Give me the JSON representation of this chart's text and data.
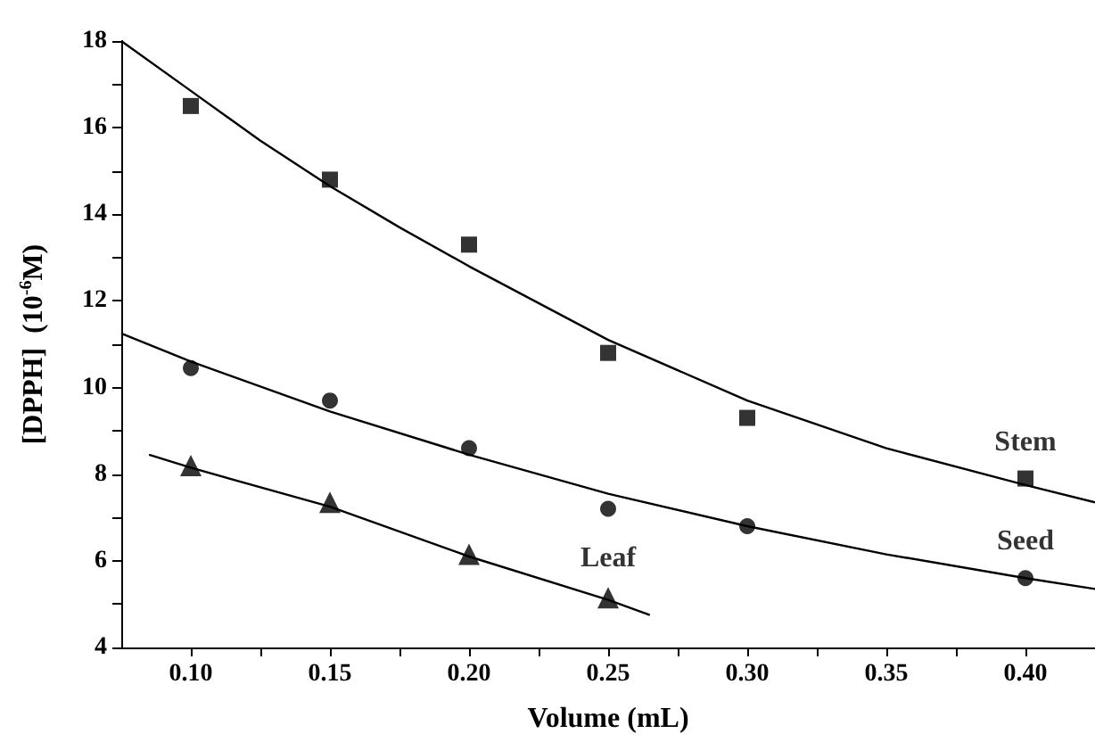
{
  "chart_data": {
    "type": "scatter",
    "xlabel": "Volume (mL)",
    "ylabel": "[DPPH]  (10$^{-6}$M)",
    "xlim": [
      0.075,
      0.425
    ],
    "ylim": [
      4,
      18
    ],
    "xticks": [
      {
        "value": 0.1,
        "label": "0.10"
      },
      {
        "value": 0.125,
        "label": null
      },
      {
        "value": 0.15,
        "label": "0.15"
      },
      {
        "value": 0.175,
        "label": null
      },
      {
        "value": 0.2,
        "label": "0.20"
      },
      {
        "value": 0.225,
        "label": null
      },
      {
        "value": 0.25,
        "label": "0.25"
      },
      {
        "value": 0.275,
        "label": null
      },
      {
        "value": 0.3,
        "label": "0.30"
      },
      {
        "value": 0.325,
        "label": null
      },
      {
        "value": 0.35,
        "label": "0.35"
      },
      {
        "value": 0.375,
        "label": null
      },
      {
        "value": 0.4,
        "label": "0.40"
      }
    ],
    "yticks": [
      4,
      {
        "value": 5,
        "label": null
      },
      6,
      {
        "value": 7,
        "label": null
      },
      8,
      {
        "value": 9,
        "label": null
      },
      10,
      {
        "value": 11,
        "label": null
      },
      12,
      {
        "value": 13,
        "label": null
      },
      14,
      {
        "value": 15,
        "label": null
      },
      16,
      {
        "value": 17,
        "label": null
      },
      18
    ],
    "grid": false,
    "legend": false,
    "series": [
      {
        "name": "Stem",
        "marker": "square",
        "color": "#000000",
        "x": [
          0.1,
          0.15,
          0.2,
          0.25,
          0.3,
          0.4
        ],
        "values": [
          16.5,
          14.8,
          13.3,
          10.8,
          9.3,
          7.9
        ]
      },
      {
        "name": "Seed",
        "marker": "circle",
        "color": "#000000",
        "x": [
          0.1,
          0.15,
          0.2,
          0.25,
          0.3,
          0.4
        ],
        "values": [
          10.45,
          9.7,
          8.6,
          7.2,
          6.8,
          5.6
        ]
      },
      {
        "name": "Leaf",
        "marker": "triangle",
        "color": "#000000",
        "x": [
          0.1,
          0.15,
          0.2,
          0.25
        ],
        "values": [
          8.2,
          7.35,
          6.15,
          5.15
        ]
      },
      {
        "type": "line",
        "marker": "none",
        "line_style": "solid",
        "color": "#000000",
        "x": [
          0.075,
          0.1,
          0.125,
          0.15,
          0.175,
          0.2,
          0.25,
          0.3,
          0.35,
          0.4,
          0.425
        ],
        "values": [
          18,
          16.85,
          15.7,
          14.65,
          13.7,
          12.8,
          11.1,
          9.7,
          8.6,
          7.75,
          7.35
        ]
      },
      {
        "type": "line",
        "marker": "none",
        "line_style": "solid",
        "color": "#000000",
        "x": [
          0.075,
          0.1,
          0.15,
          0.2,
          0.25,
          0.3,
          0.35,
          0.4,
          0.425
        ],
        "values": [
          11.25,
          10.6,
          9.45,
          8.45,
          7.55,
          6.8,
          6.15,
          5.6,
          5.35
        ]
      },
      {
        "type": "line",
        "marker": "none",
        "line_style": "solid",
        "color": "#000000",
        "x": [
          0.085,
          0.1,
          0.15,
          0.2,
          0.25,
          0.265
        ],
        "values": [
          8.45,
          8.15,
          7.25,
          6.1,
          5.1,
          4.75
        ]
      }
    ]
  }
}
